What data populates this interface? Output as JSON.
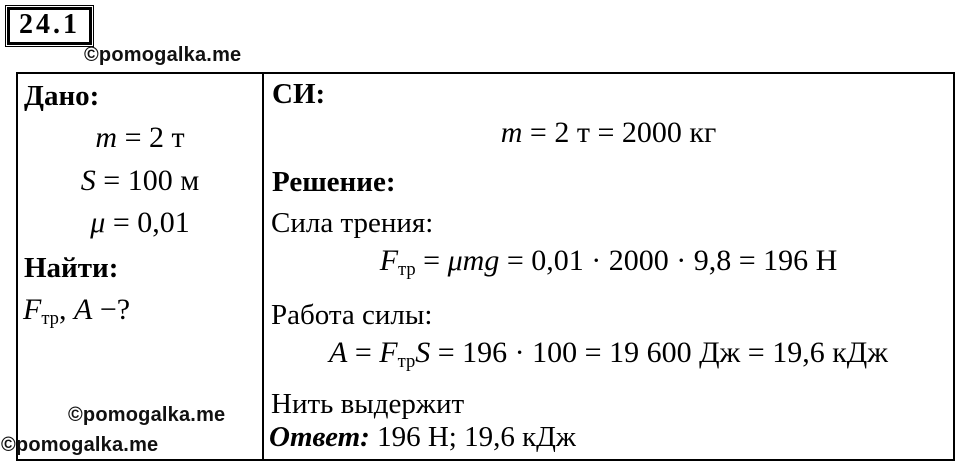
{
  "problem_number": "24.1",
  "watermark_text": "©pomogalka.me",
  "given": {
    "header": "Дано:",
    "eq_mass": [
      {
        "s": "i",
        "t": "m"
      },
      {
        "s": "n",
        "t": " = 2 т"
      }
    ],
    "eq_distance": [
      {
        "s": "i",
        "t": "S"
      },
      {
        "s": "n",
        "t": " = 100 м"
      }
    ],
    "eq_mu": [
      {
        "s": "i",
        "t": "μ"
      },
      {
        "s": "n",
        "t": " = 0,01"
      }
    ],
    "find_header": "Найти:",
    "find_line": [
      {
        "s": "i",
        "t": "F"
      },
      {
        "s": "sub",
        "t": "тр"
      },
      {
        "s": "n",
        "t": ", "
      },
      {
        "s": "i",
        "t": "A"
      },
      {
        "s": "n",
        "t": " −?"
      }
    ]
  },
  "solution": {
    "si_header": "СИ:",
    "si_equation": [
      {
        "s": "i",
        "t": "m"
      },
      {
        "s": "n",
        "t": " = 2 т = 2000 кг"
      }
    ],
    "solution_header": "Решение:",
    "friction_label": "Сила трения:",
    "friction_equation": [
      {
        "s": "i",
        "t": "F"
      },
      {
        "s": "sub",
        "t": "тр"
      },
      {
        "s": "n",
        "t": " = "
      },
      {
        "s": "i",
        "t": "μmg"
      },
      {
        "s": "n",
        "t": " = 0,01 · 2000 · 9,8 = 196 Н"
      }
    ],
    "work_label": "Работа силы:",
    "work_equation": [
      {
        "s": "i",
        "t": "A"
      },
      {
        "s": "n",
        "t": " = "
      },
      {
        "s": "i",
        "t": "F"
      },
      {
        "s": "sub",
        "t": "тр"
      },
      {
        "s": "i",
        "t": "S"
      },
      {
        "s": "n",
        "t": " = 196 · 100 = 19 600 Дж = 19,6 кДж"
      }
    ],
    "note": "Нить выдержит",
    "answer_line": [
      {
        "s": "bi",
        "t": "Ответ:"
      },
      {
        "s": "n",
        "t": " 196 Н; 19,6 кДж"
      }
    ]
  }
}
